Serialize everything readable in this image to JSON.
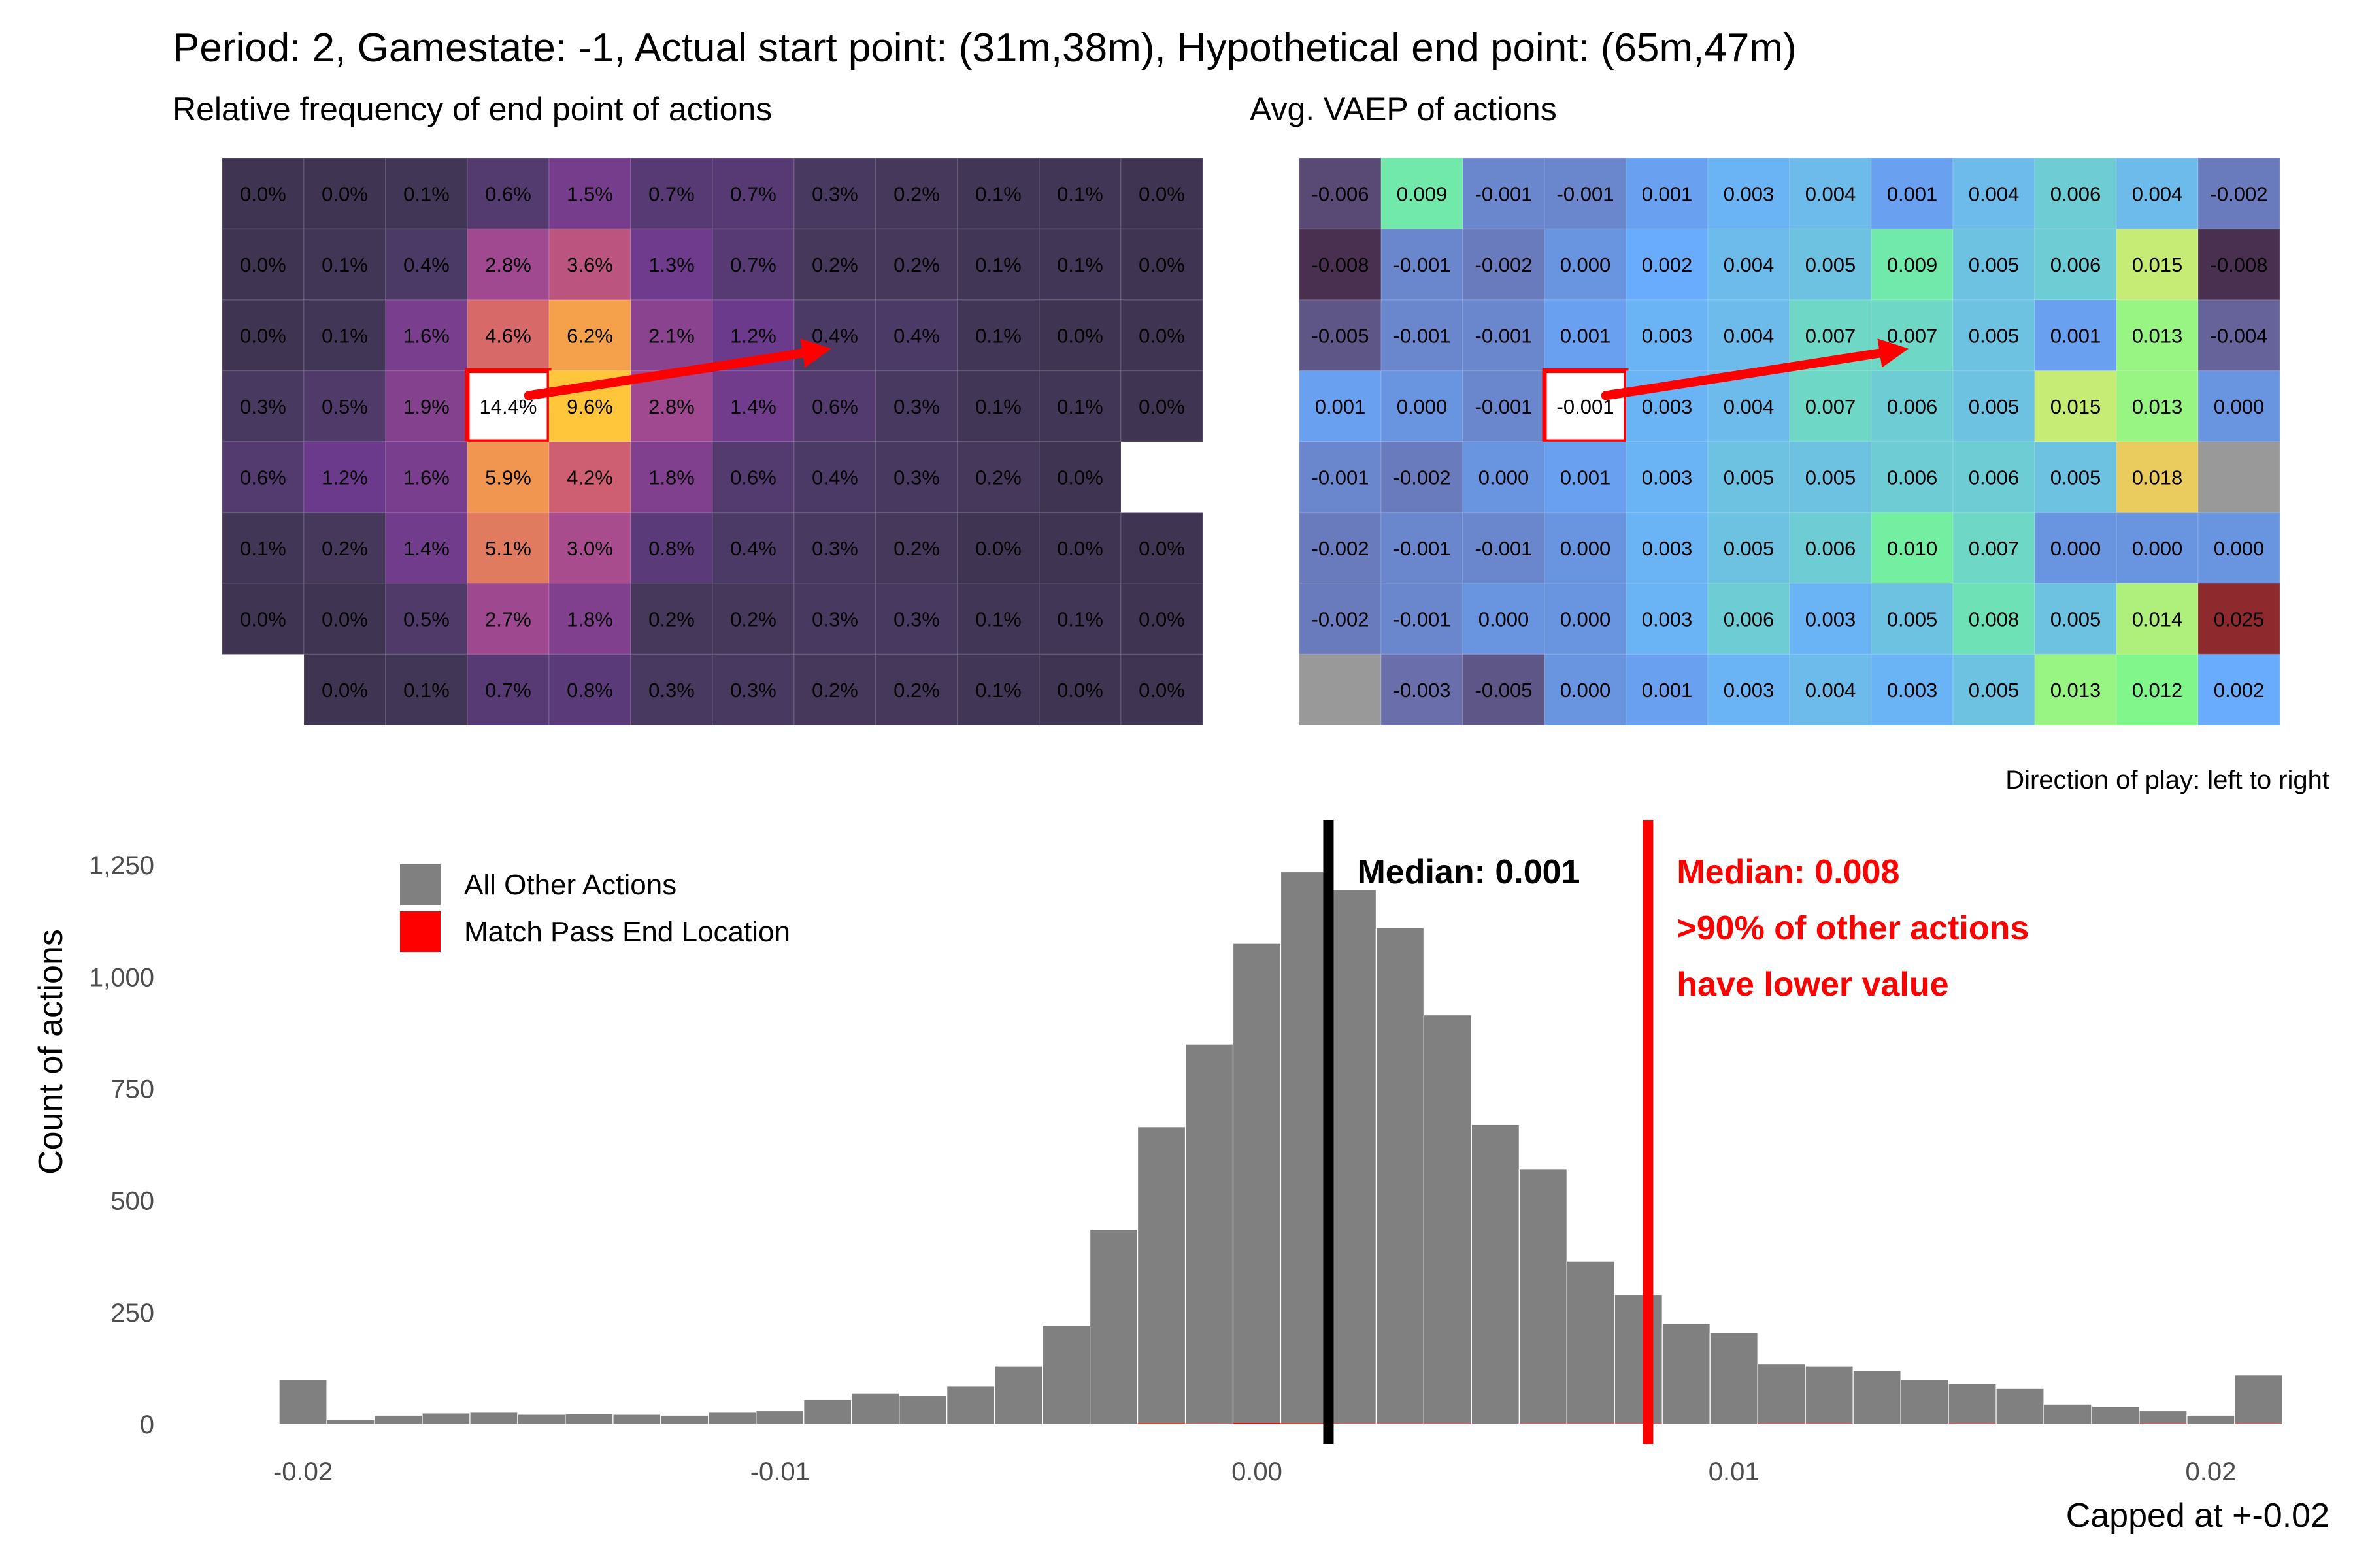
{
  "title": "Period: 2, Gamestate: -1, Actual start point: (31m,38m), Hypothetical end point: (65m,47m)",
  "direction_note": "Direction of play: left to right",
  "chart_data": [
    {
      "type": "heatmap",
      "title": "Relative frequency of end point of actions",
      "rows": [
        [
          "0.0%",
          "0.0%",
          "0.1%",
          "0.6%",
          "1.5%",
          "0.7%",
          "0.7%",
          "0.3%",
          "0.2%",
          "0.1%",
          "0.1%",
          "0.0%"
        ],
        [
          "0.0%",
          "0.1%",
          "0.4%",
          "2.8%",
          "3.6%",
          "1.3%",
          "0.7%",
          "0.2%",
          "0.2%",
          "0.1%",
          "0.1%",
          "0.0%"
        ],
        [
          "0.0%",
          "0.1%",
          "1.6%",
          "4.6%",
          "6.2%",
          "2.1%",
          "1.2%",
          "0.4%",
          "0.4%",
          "0.1%",
          "0.0%",
          "0.0%"
        ],
        [
          "0.3%",
          "0.5%",
          "1.9%",
          "14.4%",
          "9.6%",
          "2.8%",
          "1.4%",
          "0.6%",
          "0.3%",
          "0.1%",
          "0.1%",
          "0.0%"
        ],
        [
          "0.6%",
          "1.2%",
          "1.6%",
          "5.9%",
          "4.2%",
          "1.8%",
          "0.6%",
          "0.4%",
          "0.3%",
          "0.2%",
          "0.0%",
          ""
        ],
        [
          "0.1%",
          "0.2%",
          "1.4%",
          "5.1%",
          "3.0%",
          "0.8%",
          "0.4%",
          "0.3%",
          "0.2%",
          "0.0%",
          "0.0%",
          "0.0%"
        ],
        [
          "0.0%",
          "0.0%",
          "0.5%",
          "2.7%",
          "1.8%",
          "0.2%",
          "0.2%",
          "0.3%",
          "0.3%",
          "0.1%",
          "0.1%",
          "0.0%"
        ],
        [
          "",
          "0.0%",
          "0.1%",
          "0.7%",
          "0.8%",
          "0.3%",
          "0.3%",
          "0.2%",
          "0.2%",
          "0.1%",
          "0.0%",
          "0.0%"
        ]
      ],
      "highlight_cell": [
        3,
        3
      ],
      "arrow": {
        "from_cell": [
          3,
          3
        ],
        "to_cell": [
          2,
          7
        ]
      },
      "colors": {
        "base": "#3f3552"
      }
    },
    {
      "type": "heatmap",
      "title": "Avg. VAEP of actions",
      "rows": [
        [
          "-0.006",
          "0.009",
          "-0.001",
          "-0.001",
          "0.001",
          "0.003",
          "0.004",
          "0.001",
          "0.004",
          "0.006",
          "0.004",
          "-0.002"
        ],
        [
          "-0.008",
          "-0.001",
          "-0.002",
          "0.000",
          "0.002",
          "0.004",
          "0.005",
          "0.009",
          "0.005",
          "0.006",
          "0.015",
          "-0.008"
        ],
        [
          "-0.005",
          "-0.001",
          "-0.001",
          "0.001",
          "0.003",
          "0.004",
          "0.007",
          "0.007",
          "0.005",
          "0.001",
          "0.013",
          "-0.004"
        ],
        [
          "0.001",
          "0.000",
          "-0.001",
          "-0.001",
          "0.003",
          "0.004",
          "0.007",
          "0.006",
          "0.005",
          "0.015",
          "0.013",
          "0.000"
        ],
        [
          "-0.001",
          "-0.002",
          "0.000",
          "0.001",
          "0.003",
          "0.005",
          "0.005",
          "0.006",
          "0.006",
          "0.005",
          "0.018",
          ""
        ],
        [
          "-0.002",
          "-0.001",
          "-0.001",
          "0.000",
          "0.003",
          "0.005",
          "0.006",
          "0.010",
          "0.007",
          "0.000",
          "0.000",
          "0.000"
        ],
        [
          "-0.002",
          "-0.001",
          "0.000",
          "0.000",
          "0.003",
          "0.006",
          "0.003",
          "0.005",
          "0.008",
          "0.005",
          "0.014",
          "0.025"
        ],
        [
          "",
          "-0.003",
          "-0.005",
          "0.000",
          "0.001",
          "0.003",
          "0.004",
          "0.003",
          "0.005",
          "0.013",
          "0.012",
          "0.002"
        ]
      ],
      "highlight_cell": [
        3,
        3
      ],
      "arrow": {
        "from_cell": [
          3,
          3
        ],
        "to_cell": [
          2,
          7
        ]
      },
      "colors": {
        "missing": "#999999"
      }
    },
    {
      "type": "bar",
      "xlabel": "Capped at +-0.02",
      "ylabel": "Count of actions",
      "xlim": [
        -0.0212,
        0.0212
      ],
      "ylim": [
        0,
        1300
      ],
      "x_ticks": [
        -0.02,
        -0.01,
        0.0,
        0.01,
        0.02
      ],
      "x_tick_labels": [
        "-0.02",
        "-0.01",
        "0.00",
        "0.01",
        "0.02"
      ],
      "y_ticks": [
        0,
        250,
        500,
        750,
        1000,
        1250
      ],
      "y_tick_labels": [
        "0",
        "250",
        "500",
        "750",
        "1,000",
        "1,250"
      ],
      "bin_width": 0.001,
      "bin_start": -0.0205,
      "series": [
        {
          "name": "All Other Actions",
          "color": "#808080",
          "values": [
            100,
            10,
            20,
            25,
            28,
            22,
            23,
            22,
            20,
            28,
            30,
            55,
            70,
            65,
            85,
            130,
            220,
            435,
            665,
            850,
            1075,
            1235,
            1195,
            1110,
            915,
            670,
            570,
            365,
            290,
            225,
            205,
            135,
            130,
            120,
            100,
            90,
            80,
            45,
            40,
            30,
            20,
            110
          ]
        },
        {
          "name": "Match Pass End Location",
          "color": "#ff0000",
          "values": [
            0,
            0,
            0,
            0,
            0,
            0,
            0,
            0,
            0,
            0,
            0,
            0,
            0,
            0,
            0,
            0,
            0,
            0,
            2,
            1,
            3,
            2,
            1,
            1,
            1,
            0,
            1,
            1,
            1,
            0,
            0,
            1,
            1,
            0,
            0,
            1,
            0,
            0,
            0,
            1,
            0,
            1
          ]
        }
      ],
      "medians": [
        {
          "value": 0.0015,
          "color": "#000000",
          "label": "Median: 0.001"
        },
        {
          "value": 0.0082,
          "color": "#ff0000",
          "label": "Median: 0.008",
          "note_1": ">90% of other actions",
          "note_2": "have lower value"
        }
      ],
      "legend_position": "top-left"
    }
  ]
}
